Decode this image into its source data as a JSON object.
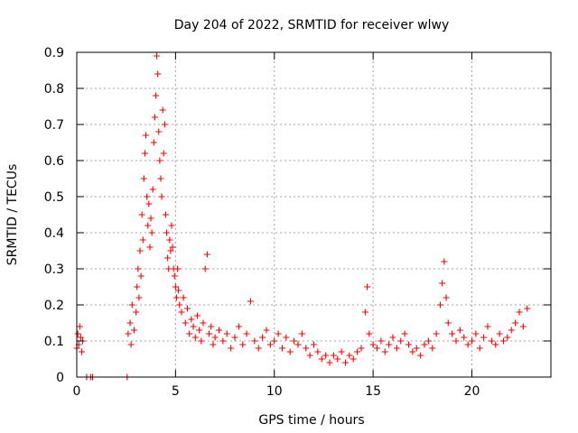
{
  "chart_data": {
    "type": "scatter",
    "title": "Day 204 of 2022, SRMTID for receiver wlwy",
    "xlabel": "GPS time / hours",
    "ylabel": "SRMTID / TECUs",
    "xlim": [
      0,
      24
    ],
    "ylim": [
      0,
      0.9
    ],
    "xticks": [
      0,
      5,
      10,
      15,
      20
    ],
    "yticks": [
      0,
      0.1,
      0.2,
      0.3,
      0.4,
      0.5,
      0.6,
      0.7,
      0.8,
      0.9
    ],
    "xtick_labels": [
      "0",
      "5",
      "10",
      "15",
      "20"
    ],
    "ytick_labels": [
      "0",
      "0.1",
      "0.2",
      "0.3",
      "0.4",
      "0.5",
      "0.6",
      "0.7",
      "0.8",
      "0.9"
    ],
    "grid": true,
    "marker": "+",
    "color": "#ff0000",
    "series": [
      {
        "name": "SRMTID",
        "x": [
          0.0,
          0.05,
          0.1,
          0.15,
          0.2,
          0.25,
          0.3,
          0.5,
          0.7,
          0.8,
          2.55,
          2.6,
          2.7,
          2.75,
          2.8,
          2.9,
          3.0,
          3.05,
          3.1,
          3.15,
          3.2,
          3.25,
          3.3,
          3.35,
          3.4,
          3.45,
          3.5,
          3.55,
          3.6,
          3.65,
          3.7,
          3.75,
          3.8,
          3.85,
          3.9,
          3.95,
          4.0,
          4.05,
          4.1,
          4.15,
          4.2,
          4.25,
          4.3,
          4.35,
          4.4,
          4.45,
          4.5,
          4.55,
          4.6,
          4.65,
          4.7,
          4.75,
          4.8,
          4.85,
          4.9,
          4.95,
          5.0,
          5.05,
          5.1,
          5.15,
          5.2,
          5.3,
          5.4,
          5.5,
          5.6,
          5.7,
          5.8,
          5.9,
          6.0,
          6.1,
          6.2,
          6.3,
          6.4,
          6.5,
          6.6,
          6.7,
          6.8,
          6.9,
          7.0,
          7.2,
          7.4,
          7.6,
          7.8,
          8.0,
          8.2,
          8.4,
          8.6,
          8.8,
          9.0,
          9.2,
          9.4,
          9.6,
          9.8,
          10.0,
          10.2,
          10.4,
          10.6,
          10.8,
          11.0,
          11.2,
          11.4,
          11.6,
          11.8,
          12.0,
          12.2,
          12.4,
          12.6,
          12.8,
          13.0,
          13.2,
          13.4,
          13.6,
          13.8,
          14.0,
          14.2,
          14.4,
          14.6,
          14.7,
          14.8,
          15.0,
          15.2,
          15.4,
          15.6,
          15.8,
          16.0,
          16.2,
          16.4,
          16.6,
          16.8,
          17.0,
          17.2,
          17.4,
          17.6,
          17.8,
          18.0,
          18.2,
          18.4,
          18.5,
          18.6,
          18.7,
          18.8,
          19.0,
          19.2,
          19.4,
          19.6,
          19.8,
          20.0,
          20.2,
          20.4,
          20.6,
          20.8,
          21.0,
          21.2,
          21.4,
          21.6,
          21.8,
          22.0,
          22.2,
          22.4,
          22.6,
          22.8
        ],
        "y": [
          0.08,
          0.12,
          0.09,
          0.14,
          0.11,
          0.07,
          0.1,
          0.0,
          0.0,
          0.0,
          0.0,
          0.12,
          0.15,
          0.09,
          0.2,
          0.13,
          0.18,
          0.25,
          0.3,
          0.22,
          0.35,
          0.28,
          0.45,
          0.38,
          0.55,
          0.62,
          0.67,
          0.5,
          0.42,
          0.48,
          0.36,
          0.44,
          0.4,
          0.52,
          0.65,
          0.72,
          0.78,
          0.89,
          0.84,
          0.68,
          0.6,
          0.55,
          0.5,
          0.74,
          0.62,
          0.7,
          0.45,
          0.4,
          0.33,
          0.3,
          0.38,
          0.35,
          0.42,
          0.36,
          0.3,
          0.28,
          0.25,
          0.22,
          0.3,
          0.24,
          0.2,
          0.18,
          0.22,
          0.15,
          0.19,
          0.12,
          0.16,
          0.14,
          0.11,
          0.17,
          0.13,
          0.1,
          0.15,
          0.3,
          0.34,
          0.12,
          0.14,
          0.09,
          0.11,
          0.13,
          0.1,
          0.12,
          0.08,
          0.11,
          0.14,
          0.09,
          0.12,
          0.21,
          0.1,
          0.08,
          0.11,
          0.13,
          0.09,
          0.1,
          0.12,
          0.08,
          0.11,
          0.07,
          0.1,
          0.09,
          0.12,
          0.08,
          0.06,
          0.09,
          0.07,
          0.05,
          0.06,
          0.04,
          0.06,
          0.05,
          0.07,
          0.04,
          0.06,
          0.05,
          0.07,
          0.08,
          0.18,
          0.25,
          0.12,
          0.09,
          0.08,
          0.1,
          0.07,
          0.09,
          0.11,
          0.08,
          0.1,
          0.12,
          0.09,
          0.07,
          0.08,
          0.06,
          0.09,
          0.1,
          0.08,
          0.12,
          0.2,
          0.26,
          0.32,
          0.22,
          0.15,
          0.12,
          0.1,
          0.13,
          0.11,
          0.09,
          0.1,
          0.12,
          0.08,
          0.11,
          0.14,
          0.1,
          0.09,
          0.12,
          0.1,
          0.11,
          0.13,
          0.15,
          0.18,
          0.14,
          0.19
        ]
      }
    ]
  }
}
